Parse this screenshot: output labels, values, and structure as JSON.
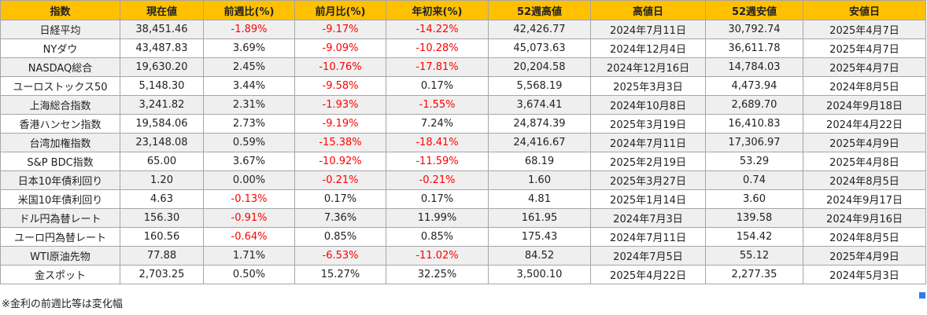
{
  "table": {
    "headers": [
      "指数",
      "現在値",
      "前週比(%)",
      "前月比(%)",
      "年初来(%)",
      "52週高値",
      "高値日",
      "52週安値",
      "安値日"
    ],
    "rows": [
      [
        "日経平均",
        "38,451.46",
        "-1.89%",
        "-9.17%",
        "-14.22%",
        "42,426.77",
        "2024年7月11日",
        "30,792.74",
        "2025年4月7日"
      ],
      [
        "NYダウ",
        "43,487.83",
        "3.69%",
        "-9.09%",
        "-10.28%",
        "45,073.63",
        "2024年12月4日",
        "36,611.78",
        "2025年4月7日"
      ],
      [
        "NASDAQ総合",
        "19,630.20",
        "2.45%",
        "-10.76%",
        "-17.81%",
        "20,204.58",
        "2024年12月16日",
        "14,784.03",
        "2025年4月7日"
      ],
      [
        "ユーロストックス50",
        "5,148.30",
        "3.44%",
        "-9.58%",
        "0.17%",
        "5,568.19",
        "2025年3月3日",
        "4,473.94",
        "2024年8月5日"
      ],
      [
        "上海総合指数",
        "3,241.82",
        "2.31%",
        "-1.93%",
        "-1.55%",
        "3,674.41",
        "2024年10月8日",
        "2,689.70",
        "2024年9月18日"
      ],
      [
        "香港ハンセン指数",
        "19,584.06",
        "2.73%",
        "-9.19%",
        "7.24%",
        "24,874.39",
        "2025年3月19日",
        "16,410.83",
        "2024年4月22日"
      ],
      [
        "台湾加権指数",
        "23,148.08",
        "0.59%",
        "-15.38%",
        "-18.41%",
        "24,416.67",
        "2024年7月11日",
        "17,306.97",
        "2025年4月9日"
      ],
      [
        "S&P BDC指数",
        "65.00",
        "3.67%",
        "-10.92%",
        "-11.59%",
        "68.19",
        "2025年2月19日",
        "53.29",
        "2025年4月8日"
      ],
      [
        "日本10年債利回り",
        "1.20",
        "0.00%",
        "-0.21%",
        "-0.21%",
        "1.60",
        "2025年3月27日",
        "0.74",
        "2024年8月5日"
      ],
      [
        "米国10年債利回り",
        "4.63",
        "-0.13%",
        "0.17%",
        "0.17%",
        "4.81",
        "2025年1月14日",
        "3.60",
        "2024年9月17日"
      ],
      [
        "ドル円為替レート",
        "156.30",
        "-0.91%",
        "7.36%",
        "11.99%",
        "161.95",
        "2024年7月3日",
        "139.58",
        "2024年9月16日"
      ],
      [
        "ユーロ円為替レート",
        "160.56",
        "-0.64%",
        "0.85%",
        "0.85%",
        "175.43",
        "2024年7月11日",
        "154.42",
        "2024年8月5日"
      ],
      [
        "WTI原油先物",
        "77.88",
        "1.71%",
        "-6.53%",
        "-11.02%",
        "84.52",
        "2024年7月5日",
        "55.12",
        "2025年4月9日"
      ],
      [
        "金スポット",
        "2,703.25",
        "0.50%",
        "15.27%",
        "32.25%",
        "3,500.10",
        "2025年4月22日",
        "2,277.35",
        "2024年5月3日"
      ]
    ]
  },
  "note": "※金利の前週比等は変化幅",
  "colors": {
    "header_bg": "#ffc000",
    "shaded_row_bg": "#efefef",
    "negative_text": "#ff0000",
    "border": "#a6a6a6"
  }
}
